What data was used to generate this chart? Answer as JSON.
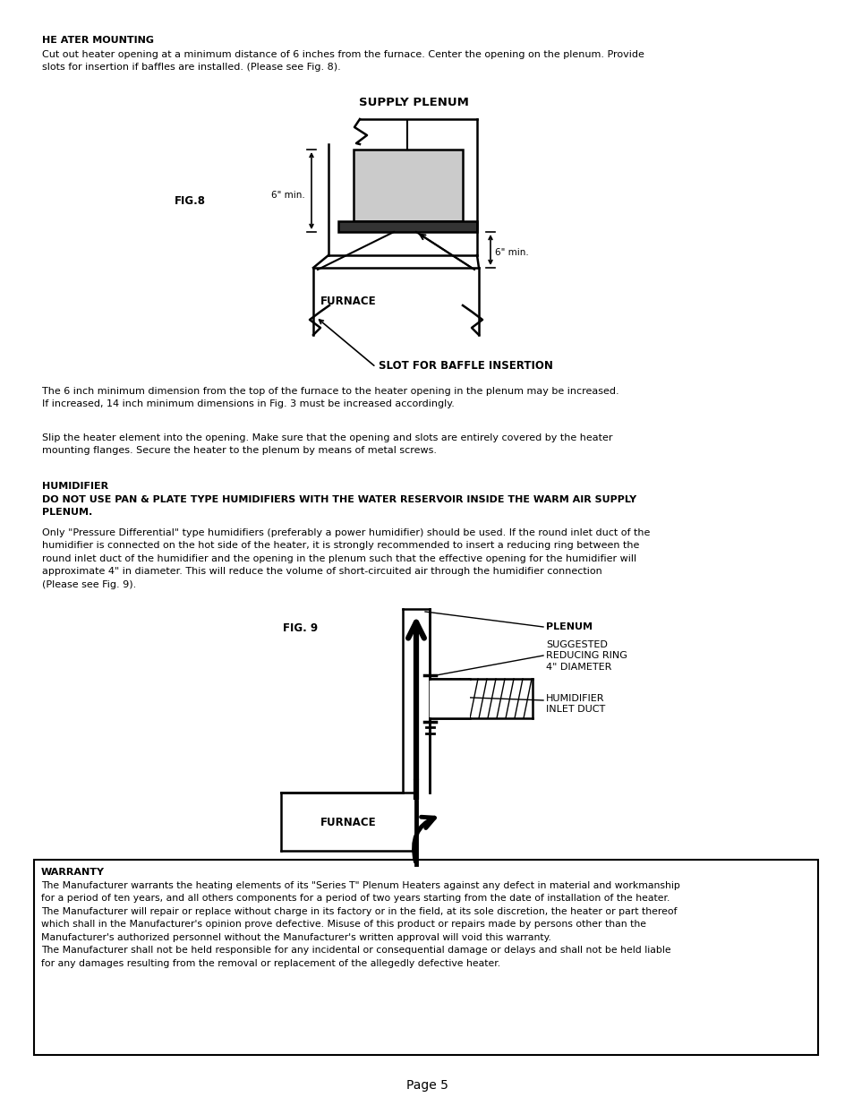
{
  "bg_color": "#ffffff",
  "text_color": "#000000",
  "page_number": "Page 5",
  "heater_mounting_title": "HE ATER MOUNTING",
  "heater_mounting_body": "Cut out heater opening at a minimum distance of 6 inches from the furnace. Center the opening on the plenum. Provide\nslots for insertion if baffles are installed. (Please see Fig. 8).",
  "fig8_label": "FIG.8",
  "supply_plenum_label": "SUPPLY PLENUM",
  "furnace_label": "FURNACE",
  "slot_label": "SLOT FOR BAFFLE INSERTION",
  "dim1_label": "6\" min.",
  "dim2_label": "6\" min.",
  "para1": "The 6 inch minimum dimension from the top of the furnace to the heater opening in the plenum may be increased.\nIf increased, 14 inch minimum dimensions in Fig. 3 must be increased accordingly.",
  "para2": "Slip the heater element into the opening. Make sure that the opening and slots are entirely covered by the heater\nmounting flanges. Secure the heater to the plenum by means of metal screws.",
  "humidifier_title": "HUMIDIFIER",
  "humidifier_warning": "DO NOT USE PAN & PLATE TYPE HUMIDIFIERS WITH THE WATER RESERVOIR INSIDE THE WARM AIR SUPPLY\nPLENUM.",
  "humidifier_para": "Only \"Pressure Differential\" type humidifiers (preferably a power humidifier) should be used. If the round inlet duct of the\nhumidifier is connected on the hot side of the heater, it is strongly recommended to insert a reducing ring between the\nround inlet duct of the humidifier and the opening in the plenum such that the effective opening for the humidifier will\napproximate 4\" in diameter. This will reduce the volume of short-circuited air through the humidifier connection\n(Please see Fig. 9).",
  "fig9_label": "FIG. 9",
  "plenum_label2": "PLENUM",
  "reducing_ring_label": "SUGGESTED\nREDUCING RING\n4\" DIAMETER",
  "humidifier_duct_label": "HUMIDIFIER\nINLET DUCT",
  "furnace_label2": "FURNACE",
  "warranty_title": "WARRANTY",
  "warranty_text": "The Manufacturer warrants the heating elements of its \"Series T\" Plenum Heaters against any defect in material and workmanship\nfor a period of ten years, and all others components for a period of two years starting from the date of installation of the heater.\nThe Manufacturer will repair or replace without charge in its factory or in the field, at its sole discretion, the heater or part thereof\nwhich shall in the Manufacturer's opinion prove defective. Misuse of this product or repairs made by persons other than the\nManufacturer's authorized personnel without the Manufacturer's written approval will void this warranty.\nThe Manufacturer shall not be held responsible for any incidental or consequential damage or delays and shall not be held liable\nfor any damages resulting from the removal or replacement of the allegedly defective heater."
}
